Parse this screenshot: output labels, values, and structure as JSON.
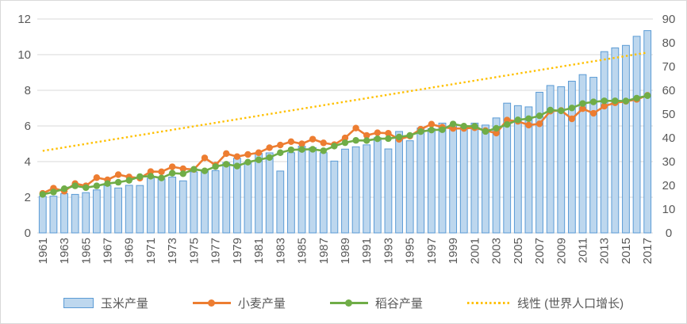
{
  "legend": {
    "corn": "玉米产量",
    "wheat": "小麦产量",
    "rice": "稻谷产量",
    "trend": "线性 (世界人口增长)"
  },
  "colors": {
    "corn_fill": "#BDD7EE",
    "corn_border": "#5B9BD5",
    "wheat": "#ED7D31",
    "rice": "#70AD47",
    "trend": "#FFC000",
    "gridline": "#D9D9D9",
    "axis_text": "#595959"
  },
  "chart_data": {
    "type": "combo",
    "title": "",
    "x": [
      1961,
      1962,
      1963,
      1964,
      1965,
      1966,
      1967,
      1968,
      1969,
      1970,
      1971,
      1972,
      1973,
      1974,
      1975,
      1976,
      1977,
      1978,
      1979,
      1980,
      1981,
      1982,
      1983,
      1984,
      1985,
      1986,
      1987,
      1988,
      1989,
      1990,
      1991,
      1992,
      1993,
      1994,
      1995,
      1996,
      1997,
      1998,
      1999,
      2000,
      2001,
      2002,
      2003,
      2004,
      2005,
      2006,
      2007,
      2008,
      2009,
      2010,
      2011,
      2012,
      2013,
      2014,
      2015,
      2016,
      2017
    ],
    "x_tick_labels": [
      "1961",
      "1963",
      "1965",
      "1967",
      "1969",
      "1971",
      "1973",
      "1975",
      "1977",
      "1979",
      "1981",
      "1983",
      "1985",
      "1987",
      "1989",
      "1991",
      "1993",
      "1995",
      "1997",
      "1999",
      "2001",
      "2003",
      "2005",
      "2007",
      "2009",
      "2011",
      "2013",
      "2015",
      "2017"
    ],
    "left_axis": {
      "min": 0,
      "max": 12,
      "step": 2,
      "ticks": [
        0,
        2,
        4,
        6,
        8,
        10,
        12
      ]
    },
    "right_axis": {
      "min": 0,
      "max": 90,
      "step": 10,
      "ticks": [
        0,
        10,
        20,
        30,
        40,
        50,
        60,
        70,
        80,
        90
      ]
    },
    "grid": true,
    "legend_position": "bottom",
    "series": [
      {
        "name": "玉米产量",
        "type": "bar",
        "axis": "left",
        "fill": "#BDD7EE",
        "border": "#5B9BD5",
        "values": [
          2.05,
          2.06,
          2.2,
          2.16,
          2.26,
          2.41,
          2.66,
          2.52,
          2.67,
          2.66,
          3.07,
          3.04,
          3.13,
          2.92,
          3.42,
          3.5,
          3.5,
          3.94,
          4.19,
          3.97,
          4.46,
          4.49,
          3.47,
          4.5,
          4.86,
          4.78,
          4.5,
          4.03,
          4.7,
          4.83,
          4.94,
          5.34,
          4.71,
          5.69,
          5.17,
          5.89,
          5.85,
          6.16,
          6.07,
          5.93,
          6.16,
          6.05,
          6.45,
          7.28,
          7.14,
          7.07,
          7.89,
          8.27,
          8.2,
          8.51,
          8.88,
          8.73,
          10.17,
          10.38,
          10.52,
          11.03,
          11.35
        ]
      },
      {
        "name": "小麦产量",
        "type": "line",
        "axis": "left",
        "color": "#ED7D31",
        "values": [
          2.22,
          2.51,
          2.34,
          2.77,
          2.64,
          3.1,
          2.98,
          3.27,
          3.14,
          3.07,
          3.44,
          3.43,
          3.71,
          3.6,
          3.56,
          4.21,
          3.8,
          4.45,
          4.28,
          4.4,
          4.5,
          4.78,
          4.93,
          5.12,
          5.0,
          5.26,
          5.05,
          4.95,
          5.33,
          5.88,
          5.47,
          5.62,
          5.59,
          5.25,
          5.43,
          5.82,
          6.1,
          5.93,
          5.86,
          5.86,
          5.9,
          5.74,
          5.6,
          6.33,
          6.26,
          6.05,
          6.12,
          6.83,
          6.87,
          6.4,
          6.97,
          6.71,
          7.11,
          7.3,
          7.38,
          7.49,
          7.72
        ]
      },
      {
        "name": "稻谷产量",
        "type": "line",
        "axis": "left",
        "color": "#70AD47",
        "values": [
          2.16,
          2.29,
          2.48,
          2.64,
          2.54,
          2.64,
          2.77,
          2.84,
          2.95,
          3.16,
          3.18,
          3.08,
          3.35,
          3.32,
          3.57,
          3.48,
          3.72,
          3.85,
          3.75,
          3.97,
          4.1,
          4.23,
          4.5,
          4.66,
          4.68,
          4.69,
          4.61,
          4.87,
          5.06,
          5.19,
          5.18,
          5.28,
          5.29,
          5.38,
          5.47,
          5.68,
          5.77,
          5.79,
          6.11,
          5.99,
          5.98,
          5.69,
          5.87,
          6.08,
          6.34,
          6.41,
          6.57,
          6.89,
          6.85,
          7.01,
          7.26,
          7.35,
          7.41,
          7.41,
          7.4,
          7.56,
          7.7
        ]
      },
      {
        "name": "线性 (世界人口增长)",
        "type": "trendline",
        "axis": "right",
        "color": "#FFC000",
        "start": 34.5,
        "end": 75.9
      }
    ]
  }
}
